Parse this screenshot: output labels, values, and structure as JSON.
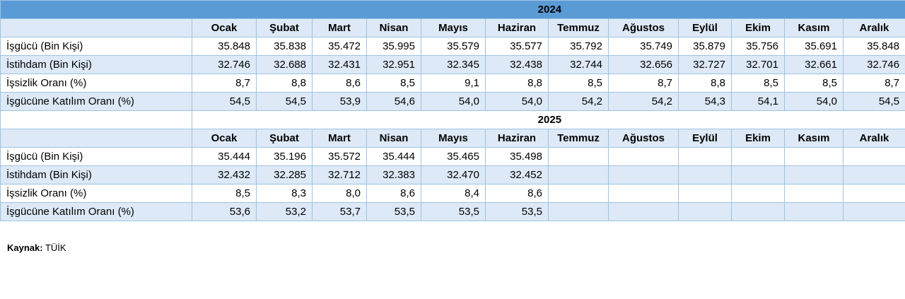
{
  "table": {
    "year_2024": "2024",
    "year_2025": "2025",
    "months": [
      "Ocak",
      "Şubat",
      "Mart",
      "Nisan",
      "Mayıs",
      "Haziran",
      "Temmuz",
      "Ağustos",
      "Eylül",
      "Ekim",
      "Kasım",
      "Aralık"
    ],
    "rows_2024": [
      {
        "label": "İşgücü (Bin Kişi)",
        "values": [
          "35.848",
          "35.838",
          "35.472",
          "35.995",
          "35.579",
          "35.577",
          "35.792",
          "35.749",
          "35.879",
          "35.756",
          "35.691",
          "35.848"
        ]
      },
      {
        "label": "İstihdam (Bin Kişi)",
        "values": [
          "32.746",
          "32.688",
          "32.431",
          "32.951",
          "32.345",
          "32.438",
          "32.744",
          "32.656",
          "32.727",
          "32.701",
          "32.661",
          "32.746"
        ]
      },
      {
        "label": "İşsizlik Oranı (%)",
        "values": [
          "8,7",
          "8,8",
          "8,6",
          "8,5",
          "9,1",
          "8,8",
          "8,5",
          "8,7",
          "8,8",
          "8,5",
          "8,5",
          "8,7"
        ]
      },
      {
        "label": "İşgücüne Katılım Oranı (%)",
        "values": [
          "54,5",
          "54,5",
          "53,9",
          "54,6",
          "54,0",
          "54,0",
          "54,2",
          "54,2",
          "54,3",
          "54,1",
          "54,0",
          "54,5"
        ]
      }
    ],
    "rows_2025": [
      {
        "label": "İşgücü (Bin Kişi)",
        "values": [
          "35.444",
          "35.196",
          "35.572",
          "35.444",
          "35.465",
          "35.498",
          "",
          "",
          "",
          "",
          "",
          ""
        ]
      },
      {
        "label": "İstihdam (Bin Kişi)",
        "values": [
          "32.432",
          "32.285",
          "32.712",
          "32.383",
          "32.470",
          "32.452",
          "",
          "",
          "",
          "",
          "",
          ""
        ]
      },
      {
        "label": "İşsizlik Oranı (%)",
        "values": [
          "8,5",
          "8,3",
          "8,0",
          "8,6",
          "8,4",
          "8,6",
          "",
          "",
          "",
          "",
          "",
          ""
        ]
      },
      {
        "label": "İşgücüne Katılım Oranı (%)",
        "values": [
          "53,6",
          "53,2",
          "53,7",
          "53,5",
          "53,5",
          "53,5",
          "",
          "",
          "",
          "",
          "",
          ""
        ]
      }
    ]
  },
  "source": {
    "label": "Kaynak:",
    "value": "TÜİK"
  }
}
